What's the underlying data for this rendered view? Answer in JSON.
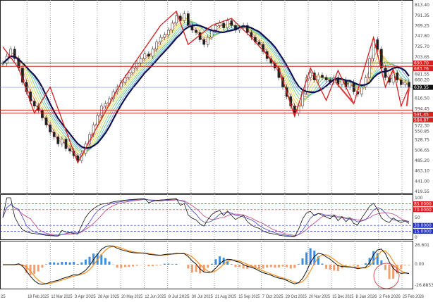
{
  "chart_data": [
    {
      "type": "candlestick",
      "panel": "price",
      "y_ticks": [
        "813.40",
        "791.35",
        "769.25",
        "747.80",
        "725.70",
        "703.65",
        "681.55",
        "660.20",
        "616.50",
        "594.45",
        "572.30",
        "550.85",
        "528.75",
        "506.65",
        "485.20",
        "463.10",
        "441.00",
        "419.55"
      ],
      "ylim": [
        419.55,
        813.4
      ],
      "x_ticks": [
        "25",
        "18 Feb 2025",
        "12 Mar 2025",
        "3 Apr 2025",
        "28 Apr 2025",
        "20 May 2025",
        "12 Jun 2025",
        "8 Jul 2025",
        "30 Jul 2025",
        "21 Aug 2025",
        "15 Sep 2025",
        "7 Oct 2025",
        "29 Oct 2025",
        "20 Nov 2025",
        "15 Dec 2025",
        "8 Jan 2026",
        "2 Feb 2026",
        "25 Feb 2026"
      ],
      "close": [
        690,
        705,
        720,
        700,
        680,
        650,
        630,
        610,
        600,
        590,
        575,
        560,
        545,
        535,
        520,
        530,
        510,
        505,
        495,
        485,
        500,
        520,
        540,
        560,
        580,
        600,
        605,
        615,
        630,
        640,
        650,
        660,
        670,
        680,
        690,
        700,
        710,
        705,
        720,
        735,
        745,
        750,
        760,
        775,
        790,
        780,
        795,
        770,
        760,
        755,
        740,
        730,
        745,
        760,
        770,
        775,
        765,
        780,
        770,
        760,
        765,
        770,
        755,
        745,
        735,
        730,
        715,
        700,
        690,
        680,
        660,
        640,
        620,
        600,
        585,
        600,
        630,
        660,
        670,
        655,
        665,
        660,
        655,
        650,
        660,
        645,
        655,
        640,
        650,
        630,
        625,
        640,
        660,
        700,
        740,
        720,
        680,
        660,
        650,
        670,
        655,
        645,
        650,
        639
      ],
      "current_price": "639.35",
      "horizontal_lines": [
        {
          "value": "690.70",
          "color": "#d42020"
        },
        {
          "value": "683.76",
          "color": "#d42020"
        },
        {
          "value": "591.45",
          "color": "#d42020"
        },
        {
          "value": "584.87",
          "color": "#d42020"
        }
      ],
      "moving_average_colors": [
        "#e03030",
        "#f08030",
        "#f0c030",
        "#c8d840",
        "#70c860",
        "#40b8b0",
        "#4090d8"
      ],
      "main_ma_color": "#101050",
      "zigzag": [
        [
          0,
          725
        ],
        [
          4,
          680
        ],
        [
          8,
          585
        ],
        [
          12,
          640
        ],
        [
          19,
          480
        ],
        [
          30,
          650
        ],
        [
          40,
          770
        ],
        [
          44,
          800
        ],
        [
          47,
          730
        ],
        [
          53,
          770
        ],
        [
          58,
          785
        ],
        [
          63,
          745
        ],
        [
          70,
          680
        ],
        [
          74,
          578
        ],
        [
          78,
          680
        ],
        [
          82,
          612
        ],
        [
          85,
          675
        ],
        [
          89,
          605
        ],
        [
          94,
          745
        ],
        [
          97,
          640
        ],
        [
          99,
          678
        ],
        [
          101,
          600
        ],
        [
          103,
          640
        ]
      ],
      "arrows": [
        [
          89,
          605,
          83,
          650
        ],
        [
          103,
          640,
          101,
          600
        ]
      ]
    },
    {
      "type": "line",
      "panel": "oscillator",
      "ylim": [
        0,
        100
      ],
      "y_ticks": [
        "100",
        "50",
        "0"
      ],
      "levels": [
        {
          "value": "85.0000",
          "color": "#d42020"
        },
        {
          "value": "70.0000",
          "color": "#d42020"
        },
        {
          "value": "30.0000",
          "color": "#2030c0"
        },
        {
          "value": "15.0000",
          "color": "#2030c0"
        }
      ]
    },
    {
      "type": "bar",
      "panel": "macd",
      "y_ticks": [
        "26.601",
        "0.00",
        "-26.8853"
      ],
      "ylim": [
        -26.8853,
        26.601
      ],
      "colors": {
        "positive": "#3a8ee0",
        "negative": "#f0a070",
        "line": "#101010",
        "signal": "#f09020"
      }
    }
  ]
}
